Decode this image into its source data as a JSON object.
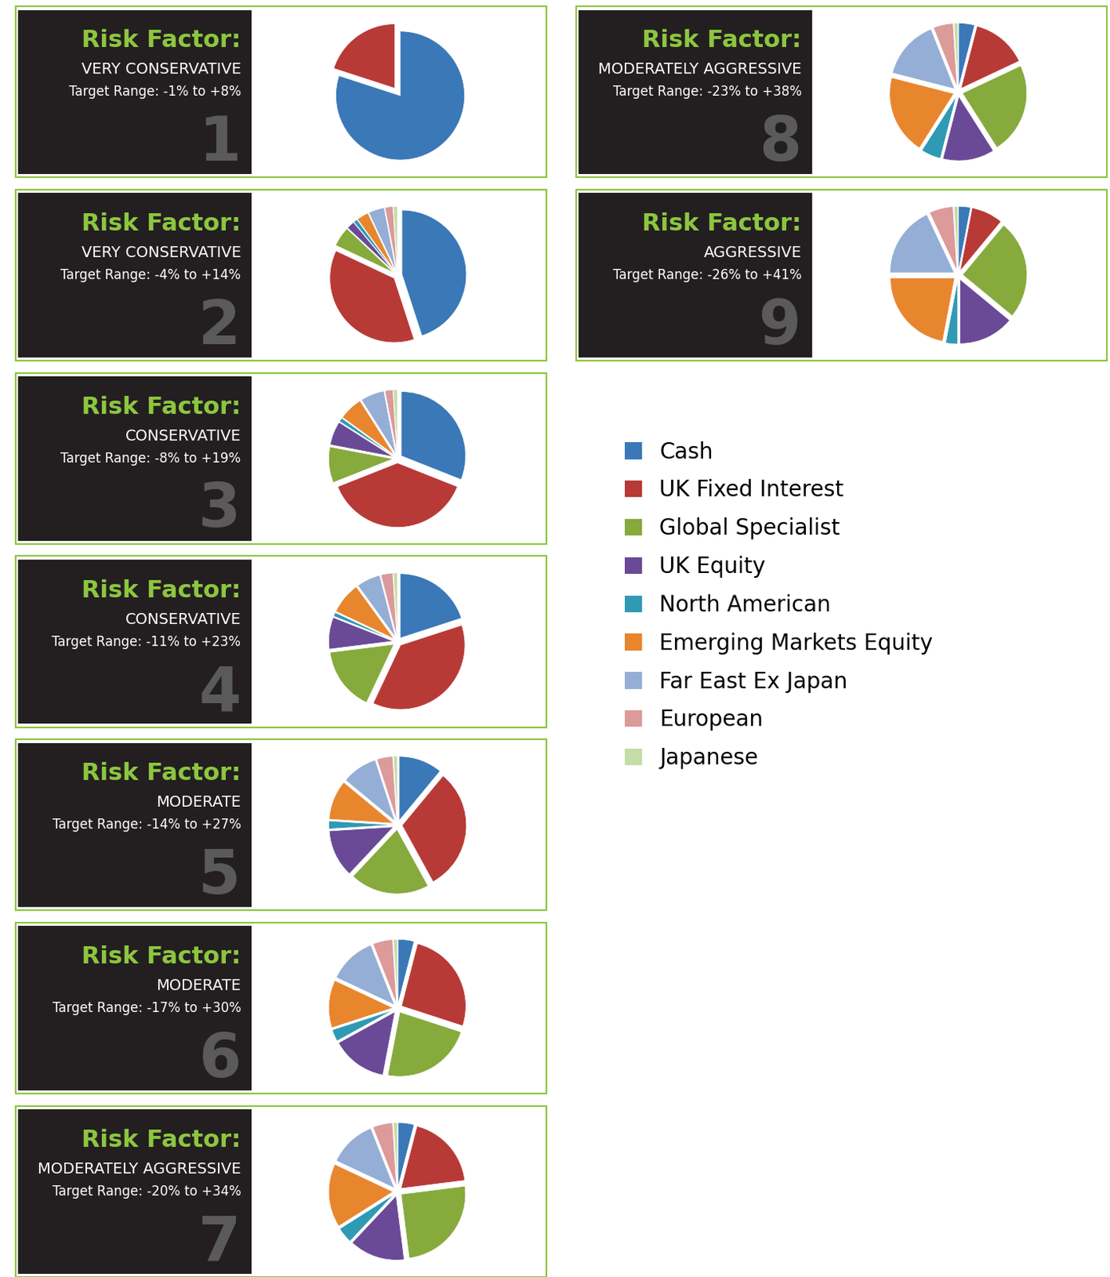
{
  "chart_data": [
    {
      "type": "pie",
      "title": "Risk Factor:",
      "subtitle": "VERY CONSERVATIVE",
      "annotations": [
        "Target Range: -1% to +8%",
        "1"
      ],
      "categories": [
        "Cash",
        "UK Fixed Interest",
        "Global Specialist",
        "UK Equity",
        "North American",
        "Emerging Markets Equity",
        "Far East Ex Japan",
        "European",
        "Japanese"
      ],
      "values": [
        80,
        20,
        0,
        0,
        0,
        0,
        0,
        0,
        0
      ],
      "colors": [
        "#3a78b8",
        "#b83a36",
        "#86aa3c",
        "#6a4a96",
        "#2f9ab3",
        "#e8862e",
        "#94aed6",
        "#dc9a9a",
        "#c4dca6"
      ],
      "legend": "upper left"
    },
    {
      "type": "pie",
      "title": "Risk Factor:",
      "subtitle": "VERY CONSERVATIVE",
      "annotations": [
        "Target Range: -4% to +14%",
        "2"
      ],
      "categories": [
        "Cash",
        "UK Fixed Interest",
        "Global Specialist",
        "UK Equity",
        "North American",
        "Emerging Markets Equity",
        "Far East Ex Japan",
        "European",
        "Japanese"
      ],
      "values": [
        45,
        37,
        5,
        2,
        1,
        3,
        4,
        2,
        1
      ],
      "colors": [
        "#3a78b8",
        "#b83a36",
        "#86aa3c",
        "#6a4a96",
        "#2f9ab3",
        "#e8862e",
        "#94aed6",
        "#dc9a9a",
        "#c4dca6"
      ]
    },
    {
      "type": "pie",
      "title": "Risk Factor:",
      "subtitle": "CONSERVATIVE",
      "annotations": [
        "Target Range: -8% to +19%",
        "3"
      ],
      "categories": [
        "Cash",
        "UK Fixed Interest",
        "Global Specialist",
        "UK Equity",
        "North American",
        "Emerging Markets Equity",
        "Far East Ex Japan",
        "European",
        "Japanese"
      ],
      "values": [
        31,
        38,
        9,
        6,
        1,
        6,
        6,
        2,
        1
      ],
      "colors": [
        "#3a78b8",
        "#b83a36",
        "#86aa3c",
        "#6a4a96",
        "#2f9ab3",
        "#e8862e",
        "#94aed6",
        "#dc9a9a",
        "#c4dca6"
      ]
    },
    {
      "type": "pie",
      "title": "Risk Factor:",
      "subtitle": "CONSERVATIVE",
      "annotations": [
        "Target Range: -11% to +23%",
        "4"
      ],
      "categories": [
        "Cash",
        "UK Fixed Interest",
        "Global Specialist",
        "UK Equity",
        "North American",
        "Emerging Markets Equity",
        "Far East Ex Japan",
        "European",
        "Japanese"
      ],
      "values": [
        20,
        37,
        16,
        8,
        1,
        8,
        6,
        3,
        1
      ],
      "colors": [
        "#3a78b8",
        "#b83a36",
        "#86aa3c",
        "#6a4a96",
        "#2f9ab3",
        "#e8862e",
        "#94aed6",
        "#dc9a9a",
        "#c4dca6"
      ]
    },
    {
      "type": "pie",
      "title": "Risk Factor:",
      "subtitle": "MODERATE",
      "annotations": [
        "Target Range: -14% to +27%",
        "5"
      ],
      "categories": [
        "Cash",
        "UK Fixed Interest",
        "Global Specialist",
        "UK Equity",
        "North American",
        "Emerging Markets Equity",
        "Far East Ex Japan",
        "European",
        "Japanese"
      ],
      "values": [
        11,
        31,
        20,
        12,
        2,
        10,
        9,
        4,
        1
      ],
      "colors": [
        "#3a78b8",
        "#b83a36",
        "#86aa3c",
        "#6a4a96",
        "#2f9ab3",
        "#e8862e",
        "#94aed6",
        "#dc9a9a",
        "#c4dca6"
      ]
    },
    {
      "type": "pie",
      "title": "Risk Factor:",
      "subtitle": "MODERATE",
      "annotations": [
        "Target Range: -17% to +30%",
        "6"
      ],
      "categories": [
        "Cash",
        "UK Fixed Interest",
        "Global Specialist",
        "UK Equity",
        "North American",
        "Emerging Markets Equity",
        "Far East Ex Japan",
        "European",
        "Japanese"
      ],
      "values": [
        4,
        26,
        23,
        14,
        3,
        12,
        12,
        5,
        1
      ],
      "colors": [
        "#3a78b8",
        "#b83a36",
        "#86aa3c",
        "#6a4a96",
        "#2f9ab3",
        "#e8862e",
        "#94aed6",
        "#dc9a9a",
        "#c4dca6"
      ]
    },
    {
      "type": "pie",
      "title": "Risk Factor:",
      "subtitle": "MODERATELY AGGRESSIVE",
      "annotations": [
        "Target Range: -20% to +34%",
        "7"
      ],
      "categories": [
        "Cash",
        "UK Fixed Interest",
        "Global Specialist",
        "UK Equity",
        "North American",
        "Emerging Markets Equity",
        "Far East Ex Japan",
        "European",
        "Japanese"
      ],
      "values": [
        4,
        19,
        25,
        14,
        4,
        16,
        12,
        5,
        1
      ],
      "colors": [
        "#3a78b8",
        "#b83a36",
        "#86aa3c",
        "#6a4a96",
        "#2f9ab3",
        "#e8862e",
        "#94aed6",
        "#dc9a9a",
        "#c4dca6"
      ]
    },
    {
      "type": "pie",
      "title": "Risk Factor:",
      "subtitle": "MODERATELY AGGRESSIVE",
      "annotations": [
        "Target Range: -23% to +38%",
        "8"
      ],
      "categories": [
        "Cash",
        "UK Fixed Interest",
        "Global Specialist",
        "UK Equity",
        "North American",
        "Emerging Markets Equity",
        "Far East Ex Japan",
        "European",
        "Japanese"
      ],
      "values": [
        4,
        14,
        23,
        13,
        5,
        20,
        15,
        5,
        1
      ],
      "colors": [
        "#3a78b8",
        "#b83a36",
        "#86aa3c",
        "#6a4a96",
        "#2f9ab3",
        "#e8862e",
        "#94aed6",
        "#dc9a9a",
        "#c4dca6"
      ]
    },
    {
      "type": "pie",
      "title": "Risk Factor:",
      "subtitle": "AGGRESSIVE",
      "annotations": [
        "Target Range: -26% to +41%",
        "9"
      ],
      "categories": [
        "Cash",
        "UK Fixed Interest",
        "Global Specialist",
        "UK Equity",
        "North American",
        "Emerging Markets Equity",
        "Far East Ex Japan",
        "European",
        "Japanese"
      ],
      "values": [
        3,
        8,
        25,
        14,
        3,
        22,
        18,
        6,
        1
      ],
      "colors": [
        "#3a78b8",
        "#b83a36",
        "#86aa3c",
        "#6a4a96",
        "#2f9ab3",
        "#e8862e",
        "#94aed6",
        "#dc9a9a",
        "#c4dca6"
      ]
    }
  ]
}
